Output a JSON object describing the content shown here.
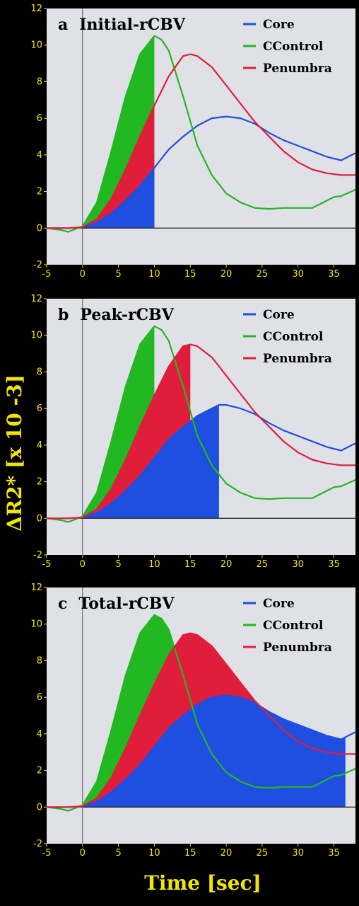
{
  "ylabel": "ΔR2* [x 10 -3]",
  "xlabel": "Time [sec]",
  "chart_data": [
    {
      "type": "area",
      "panel_letter": "a",
      "title": "Initial-rCBV",
      "xlim": [
        -5,
        38
      ],
      "ylim": [
        -2,
        12
      ],
      "xticks": [
        "-5",
        "0",
        "5",
        "10",
        "15",
        "20",
        "25",
        "30",
        "35"
      ],
      "yticks": [
        "-2",
        "0",
        "2",
        "4",
        "6",
        "8",
        "10",
        "12"
      ],
      "legend_position": "top-right",
      "shade_mode": "initial",
      "shade_until_x": 10,
      "series": [
        {
          "name": "Core",
          "color": "#1f4fe0",
          "x": [
            -5,
            -3,
            -2,
            0,
            2,
            4,
            6,
            8,
            10,
            12,
            14,
            16,
            18,
            20,
            22,
            24,
            26,
            28,
            30,
            32,
            34,
            35,
            36,
            37,
            38
          ],
          "y": [
            0,
            0,
            0,
            0.05,
            0.3,
            0.8,
            1.5,
            2.3,
            3.3,
            4.3,
            5.0,
            5.6,
            6.0,
            6.1,
            6.0,
            5.7,
            5.2,
            4.8,
            4.5,
            4.2,
            3.9,
            3.8,
            3.7,
            3.9,
            4.1
          ]
        },
        {
          "name": "CControl",
          "color": "#22b822",
          "x": [
            -5,
            -3,
            -2,
            0,
            2,
            4,
            6,
            8,
            10,
            11,
            12,
            14,
            16,
            18,
            20,
            22,
            24,
            26,
            28,
            30,
            32,
            34,
            35,
            36,
            38
          ],
          "y": [
            0,
            -0.1,
            -0.2,
            0.1,
            1.4,
            4.2,
            7.2,
            9.5,
            10.5,
            10.3,
            9.7,
            7.2,
            4.5,
            2.9,
            1.9,
            1.4,
            1.1,
            1.05,
            1.1,
            1.1,
            1.1,
            1.5,
            1.7,
            1.75,
            2.1
          ]
        },
        {
          "name": "Penumbra",
          "color": "#e01e3c",
          "x": [
            -5,
            -3,
            -2,
            0,
            2,
            4,
            6,
            8,
            10,
            12,
            14,
            15,
            16,
            18,
            20,
            22,
            24,
            26,
            28,
            30,
            32,
            34,
            36,
            38
          ],
          "y": [
            0,
            0,
            0,
            0.05,
            0.5,
            1.6,
            3.2,
            5.0,
            6.7,
            8.3,
            9.4,
            9.5,
            9.4,
            8.8,
            7.8,
            6.8,
            5.8,
            5.0,
            4.2,
            3.6,
            3.2,
            3.0,
            2.9,
            2.9
          ]
        }
      ]
    },
    {
      "type": "area",
      "panel_letter": "b",
      "title": "Peak-rCBV",
      "xlim": [
        -5,
        38
      ],
      "ylim": [
        -2,
        12
      ],
      "xticks": [
        "-5",
        "0",
        "5",
        "10",
        "15",
        "20",
        "25",
        "30",
        "35"
      ],
      "yticks": [
        "-2",
        "0",
        "2",
        "4",
        "6",
        "8",
        "10",
        "12"
      ],
      "legend_position": "top-right",
      "shade_mode": "peak",
      "series": [
        {
          "name": "Core",
          "color": "#1f4fe0",
          "x": [
            -5,
            -3,
            -2,
            0,
            2,
            4,
            6,
            8,
            10,
            12,
            14,
            16,
            18,
            19,
            20,
            22,
            24,
            26,
            28,
            30,
            32,
            34,
            35,
            36,
            37,
            38
          ],
          "y": [
            0,
            0,
            0,
            0.05,
            0.3,
            0.8,
            1.5,
            2.3,
            3.3,
            4.3,
            5.0,
            5.6,
            6.0,
            6.2,
            6.2,
            6.0,
            5.7,
            5.2,
            4.8,
            4.5,
            4.2,
            3.9,
            3.8,
            3.7,
            3.9,
            4.1
          ]
        },
        {
          "name": "CControl",
          "color": "#22b822",
          "x": [
            -5,
            -3,
            -2,
            0,
            2,
            4,
            6,
            8,
            10,
            11,
            12,
            14,
            16,
            18,
            20,
            22,
            24,
            26,
            28,
            30,
            32,
            34,
            35,
            36,
            38
          ],
          "y": [
            0,
            -0.1,
            -0.2,
            0.1,
            1.4,
            4.2,
            7.2,
            9.5,
            10.5,
            10.3,
            9.7,
            7.2,
            4.5,
            2.9,
            1.9,
            1.4,
            1.1,
            1.05,
            1.1,
            1.1,
            1.1,
            1.5,
            1.7,
            1.75,
            2.1
          ]
        },
        {
          "name": "Penumbra",
          "color": "#e01e3c",
          "x": [
            -5,
            -3,
            -2,
            0,
            2,
            4,
            6,
            8,
            10,
            12,
            14,
            15,
            16,
            18,
            20,
            22,
            24,
            26,
            28,
            30,
            32,
            34,
            36,
            38
          ],
          "y": [
            0,
            0,
            0,
            0.05,
            0.5,
            1.6,
            3.2,
            5.0,
            6.7,
            8.3,
            9.4,
            9.5,
            9.4,
            8.8,
            7.8,
            6.8,
            5.8,
            5.0,
            4.2,
            3.6,
            3.2,
            3.0,
            2.9,
            2.9
          ]
        }
      ]
    },
    {
      "type": "area",
      "panel_letter": "c",
      "title": "Total-rCBV",
      "xlim": [
        -5,
        38
      ],
      "ylim": [
        -2,
        12
      ],
      "xticks": [
        "-5",
        "0",
        "5",
        "10",
        "15",
        "20",
        "25",
        "30",
        "35"
      ],
      "yticks": [
        "-2",
        "0",
        "2",
        "4",
        "6",
        "8",
        "10",
        "12"
      ],
      "legend_position": "top-right",
      "shade_mode": "total",
      "series": [
        {
          "name": "Core",
          "color": "#1f4fe0",
          "end_x": 36.5,
          "x": [
            -5,
            -3,
            -2,
            0,
            2,
            4,
            6,
            8,
            10,
            12,
            14,
            16,
            18,
            20,
            22,
            24,
            26,
            28,
            30,
            32,
            34,
            35,
            36,
            37,
            38
          ],
          "y": [
            0,
            0,
            0,
            0.05,
            0.3,
            0.8,
            1.5,
            2.3,
            3.3,
            4.3,
            5.0,
            5.6,
            6.0,
            6.1,
            6.0,
            5.7,
            5.2,
            4.8,
            4.5,
            4.2,
            3.9,
            3.8,
            3.7,
            3.9,
            4.1
          ]
        },
        {
          "name": "CControl",
          "color": "#22b822",
          "end_x": 26,
          "x": [
            -5,
            -3,
            -2,
            0,
            2,
            4,
            6,
            8,
            10,
            11,
            12,
            14,
            16,
            18,
            20,
            22,
            24,
            26,
            28,
            30,
            32,
            34,
            35,
            36,
            38
          ],
          "y": [
            0,
            -0.1,
            -0.2,
            0.1,
            1.4,
            4.2,
            7.2,
            9.5,
            10.5,
            10.3,
            9.7,
            7.2,
            4.5,
            2.9,
            1.9,
            1.4,
            1.1,
            1.05,
            1.1,
            1.1,
            1.1,
            1.5,
            1.7,
            1.75,
            2.1
          ]
        },
        {
          "name": "Penumbra",
          "color": "#e01e3c",
          "end_x": 34,
          "x": [
            -5,
            -3,
            -2,
            0,
            2,
            4,
            6,
            8,
            10,
            12,
            14,
            15,
            16,
            18,
            20,
            22,
            24,
            26,
            28,
            30,
            32,
            34,
            36,
            38
          ],
          "y": [
            0,
            0,
            0,
            0.05,
            0.5,
            1.6,
            3.2,
            5.0,
            6.7,
            8.3,
            9.4,
            9.5,
            9.4,
            8.8,
            7.8,
            6.8,
            5.8,
            5.0,
            4.2,
            3.6,
            3.2,
            3.0,
            2.9,
            2.9
          ]
        }
      ]
    }
  ]
}
